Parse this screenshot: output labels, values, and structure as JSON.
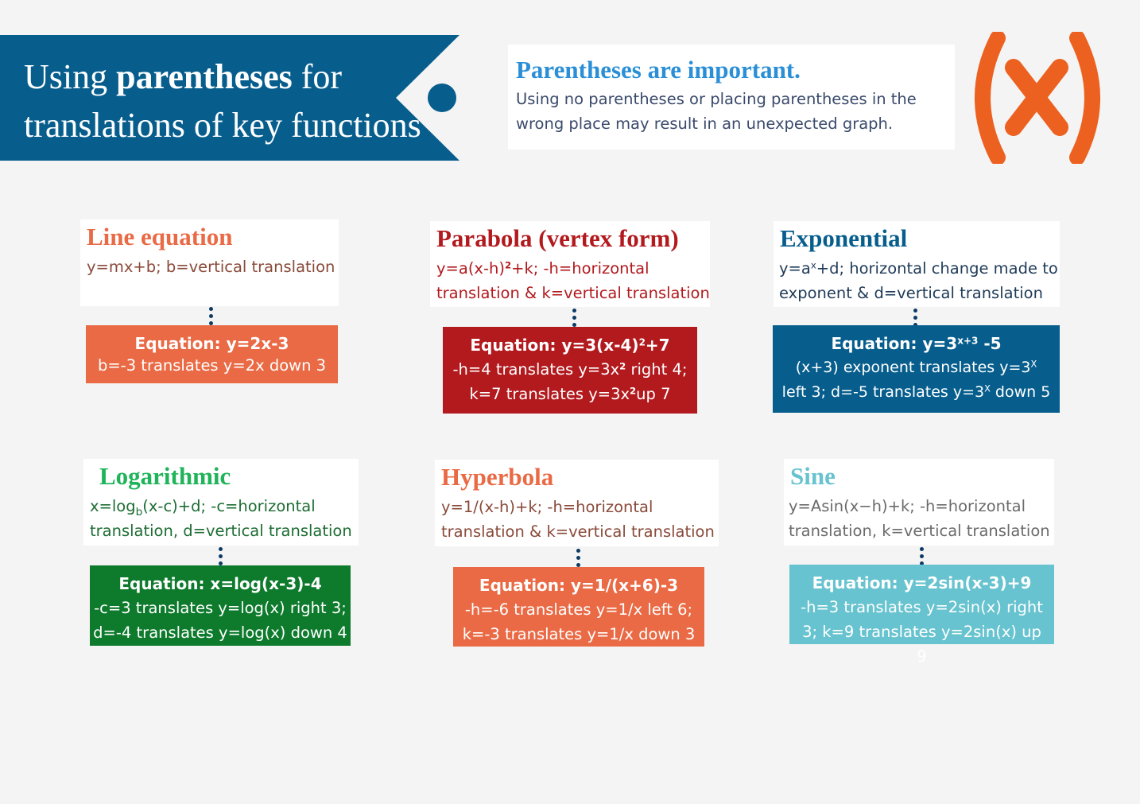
{
  "colors": {
    "banner": "#075e8d",
    "note_heading": "#2a8fd6",
    "logo": "#ec6120",
    "line": "#e96a45",
    "parabola": "#b21a1e",
    "exponential": "#075e8d",
    "logarithmic": "#0d7a2c",
    "hyperbola": "#e96a45",
    "sine": "#67c3cf"
  },
  "banner": {
    "title_prefix": "Using ",
    "title_bold": "parentheses",
    "title_suffix": " for translations of key functions"
  },
  "note": {
    "heading": "Parentheses are important.",
    "body": "Using no parentheses or placing parentheses in the wrong place may result in an unexpected graph."
  },
  "logo": {
    "text": "(x)",
    "icon": "variable-x-icon"
  },
  "cards": {
    "line": {
      "title": "Line equation",
      "desc": "y=mx+b; b=vertical translation",
      "eq": "Equation: y=2x-3",
      "explain": "b=-3 translates y=2x down 3"
    },
    "parabola": {
      "title": "Parabola (vertex form)",
      "desc_a": "y=a(x-h)",
      "desc_sup": "2",
      "desc_b": "+k; -h=horizontal translation & k=vertical translation",
      "eq_a": "Equation: y=3(x-4)",
      "eq_sup": "2",
      "eq_b": "+7",
      "ex1_a": "-h=4 translates y=3x",
      "ex1_sup": "2",
      "ex1_b": " right 4;",
      "ex2_a": "k=7 translates y=3x",
      "ex2_sup": "2",
      "ex2_b": "up 7"
    },
    "exponential": {
      "title": "Exponential",
      "desc_a": "y=a",
      "desc_sup": "x",
      "desc_b": "+d; horizontal change made to exponent & d=vertical translation",
      "eq_a": "Equation: y=3",
      "eq_sup": "x+3",
      "eq_b": " -5",
      "ex1_a": "(x+3) exponent translates y=3",
      "ex1_sup": "X",
      "ex2_a": "left 3; d=-5 translates y=3",
      "ex2_sup": "X",
      "ex2_b": "  down 5"
    },
    "logarithmic": {
      "title": "Logarithmic",
      "desc_a": "x=log",
      "desc_sub": "b",
      "desc_b": "(x-c)+d; -c=horizontal translation, d=vertical translation",
      "eq": "Equation: x=log(x-3)-4",
      "ex1": "-c=3 translates y=log(x) right 3;",
      "ex2": "d=-4 translates y=log(x) down 4"
    },
    "hyperbola": {
      "title": "Hyperbola",
      "desc": "y=1/(x-h)+k; -h=horizontal translation & k=vertical translation",
      "eq": "Equation: y=1/(x+6)-3",
      "ex1": "-h=-6 translates y=1/x left 6;",
      "ex2": "k=-3 translates y=1/x down 3"
    },
    "sine": {
      "title": "Sine",
      "desc": "y=Asin(x−h)+k; -h=horizontal translation, k=vertical translation",
      "eq": "Equation: y=2sin(x-3)+9",
      "explain": "-h=3 translates y=2sin(x) right 3; k=9 translates y=2sin(x) up 9"
    }
  }
}
